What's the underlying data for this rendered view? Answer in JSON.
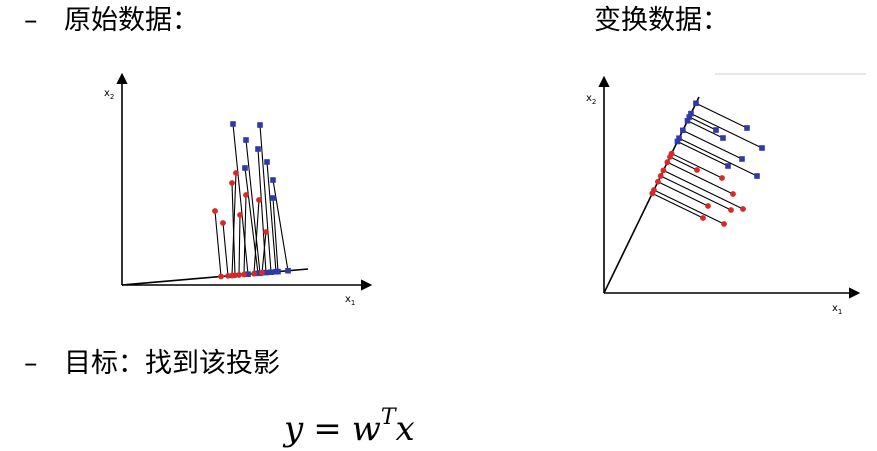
{
  "bullets": {
    "raw_label": "原始数据：",
    "transformed_label": "变换数据：",
    "goal_label": "目标：找到该投影",
    "dash": "–"
  },
  "formula": {
    "lhs": "y",
    "eq": "=",
    "w": "w",
    "sup": "T",
    "x": "x"
  },
  "axes": {
    "x_label": "x",
    "x_sub": "1",
    "y_label": "x",
    "y_sub": "2"
  },
  "colors": {
    "red": "#d42a2a",
    "blue": "#2f3aa8",
    "axis": "#000000"
  }
}
